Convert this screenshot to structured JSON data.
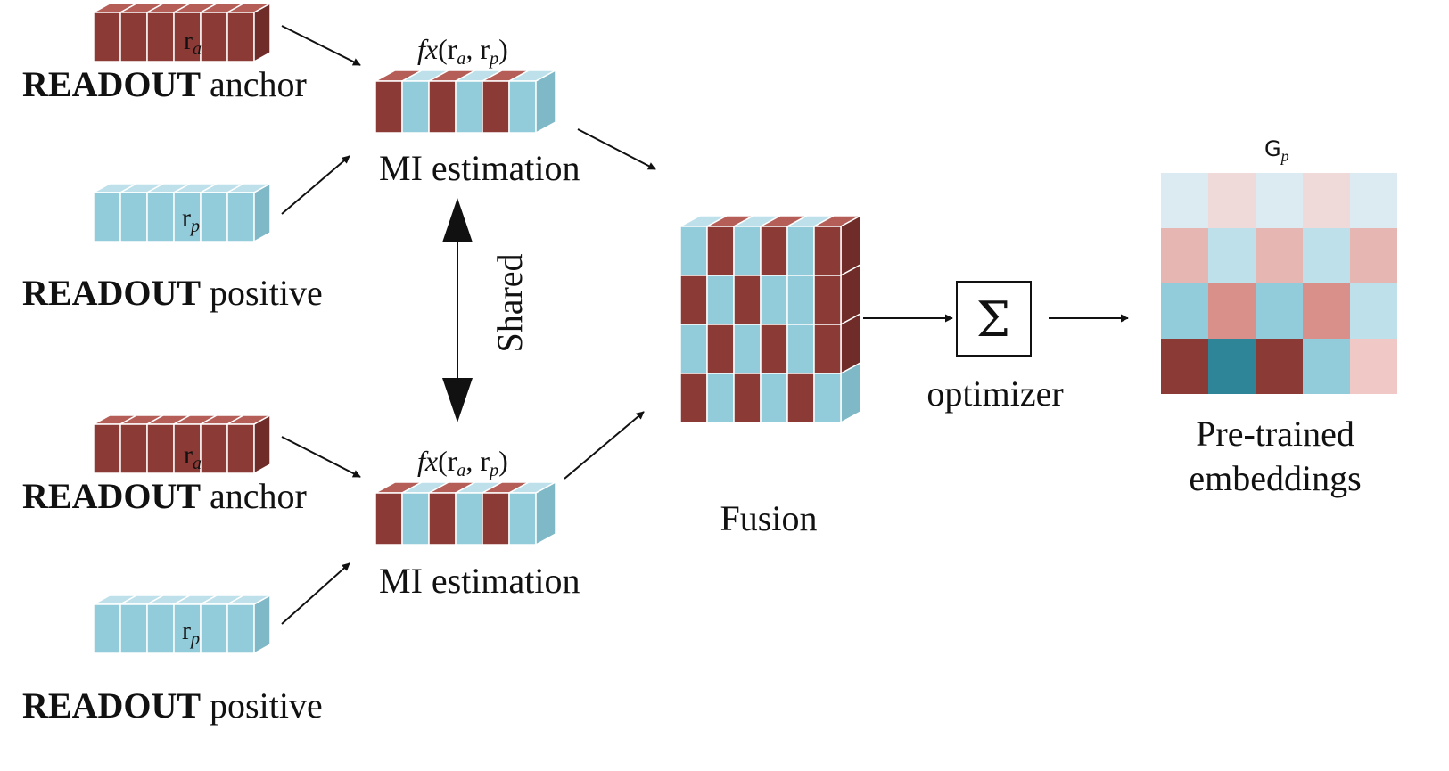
{
  "colors": {
    "red": "#8c3a35",
    "blue": "#92cbd9",
    "red_top": "#b55e58",
    "blue_top": "#bde0ea",
    "dark_teal": "#2e8597",
    "line": "#111111"
  },
  "labels": {
    "readout_bold": "READOUT",
    "anchor_suffix": "anchor",
    "positive_suffix": "positive",
    "r_main": "r",
    "r_sub_anchor": "a",
    "r_sub_positive": "p",
    "fx": "fx",
    "fx_args": "(r",
    "fx_comma": ", r",
    "fx_close": ")",
    "mi_estimation": "MI estimation",
    "shared": "Shared",
    "fusion": "Fusion",
    "sigma": "Σ",
    "optimizer": "optimizer",
    "gp_main": "G",
    "gp_sub": "p",
    "pretrained_line1": "Pre-trained",
    "pretrained_line2": "embeddings"
  },
  "bars": {
    "anchor_cells": [
      "red",
      "red",
      "red",
      "red",
      "red",
      "red"
    ],
    "positive_cells": [
      "blue",
      "blue",
      "blue",
      "blue",
      "blue",
      "blue"
    ],
    "mi_cells": [
      "red",
      "blue",
      "red",
      "blue",
      "red",
      "blue"
    ]
  },
  "fusion_grid": [
    [
      "blue",
      "red",
      "blue",
      "red",
      "blue",
      "red"
    ],
    [
      "red",
      "blue",
      "red",
      "blue",
      "blue",
      "red"
    ],
    [
      "blue",
      "red",
      "blue",
      "red",
      "blue",
      "red"
    ],
    [
      "red",
      "blue",
      "red",
      "blue",
      "red",
      "blue"
    ]
  ],
  "fusion_top": [
    "blue",
    "red",
    "blue",
    "red",
    "blue",
    "red"
  ],
  "heatmap": [
    [
      "#dcebf1",
      "#f0dad9",
      "#dcebf1",
      "#f0dad9",
      "#dcebf1"
    ],
    [
      "#e6b6b3",
      "#bde0ea",
      "#e6b6b3",
      "#bde0ea",
      "#e6b6b3"
    ],
    [
      "#92cbd9",
      "#d9908b",
      "#92cbd9",
      "#d9908b",
      "#bde0ea"
    ],
    [
      "#8c3a35",
      "#2e8597",
      "#8c3a35",
      "#92cbd9",
      "#f0c8c6"
    ]
  ]
}
